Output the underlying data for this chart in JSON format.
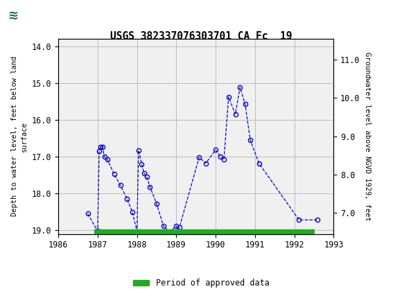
{
  "title": "USGS 382337076303701 CA Fc  19",
  "ylabel_left": "Depth to water level, feet below land\nsurface",
  "ylabel_right": "Groundwater level above NGVD 1929, feet",
  "ylim_left": [
    19.1,
    13.8
  ],
  "ylim_right": [
    6.45,
    11.55
  ],
  "xlim": [
    1986,
    1993
  ],
  "xticks": [
    1986,
    1987,
    1988,
    1989,
    1990,
    1991,
    1992,
    1993
  ],
  "yticks_left": [
    14.0,
    15.0,
    16.0,
    17.0,
    18.0,
    19.0
  ],
  "yticks_right": [
    7.0,
    8.0,
    9.0,
    10.0,
    11.0
  ],
  "header_color": "#1a6b3c",
  "data_x": [
    1986.75,
    1987.0,
    1987.04,
    1987.08,
    1987.12,
    1987.17,
    1987.25,
    1987.42,
    1987.58,
    1987.75,
    1987.88,
    1988.0,
    1988.04,
    1988.12,
    1988.18,
    1988.25,
    1988.33,
    1988.5,
    1988.67,
    1988.83,
    1989.0,
    1989.04,
    1989.08,
    1989.58,
    1989.75,
    1990.0,
    1990.12,
    1990.21,
    1990.33,
    1990.5,
    1990.62,
    1990.75,
    1990.88,
    1991.1,
    1992.12,
    1992.58
  ],
  "data_y": [
    18.55,
    19.02,
    16.85,
    16.73,
    16.73,
    17.0,
    17.08,
    17.48,
    17.78,
    18.15,
    18.5,
    19.03,
    16.83,
    17.2,
    17.45,
    17.55,
    17.82,
    18.28,
    18.88,
    19.05,
    18.88,
    19.05,
    18.92,
    17.02,
    17.18,
    16.82,
    17.0,
    17.08,
    15.38,
    15.85,
    15.12,
    15.58,
    16.55,
    17.18,
    18.72,
    18.72
  ],
  "green_bar_y": 19.05,
  "green_bar_x_start": 1986.92,
  "green_bar_x_end": 1992.52,
  "green_color": "#22aa22",
  "line_color": "#0000cc",
  "marker_color": "#0000cc",
  "bg_color": "#ffffff",
  "plot_bg_color": "#f0f0f0",
  "grid_color": "#bbbbbb",
  "font_family": "monospace"
}
